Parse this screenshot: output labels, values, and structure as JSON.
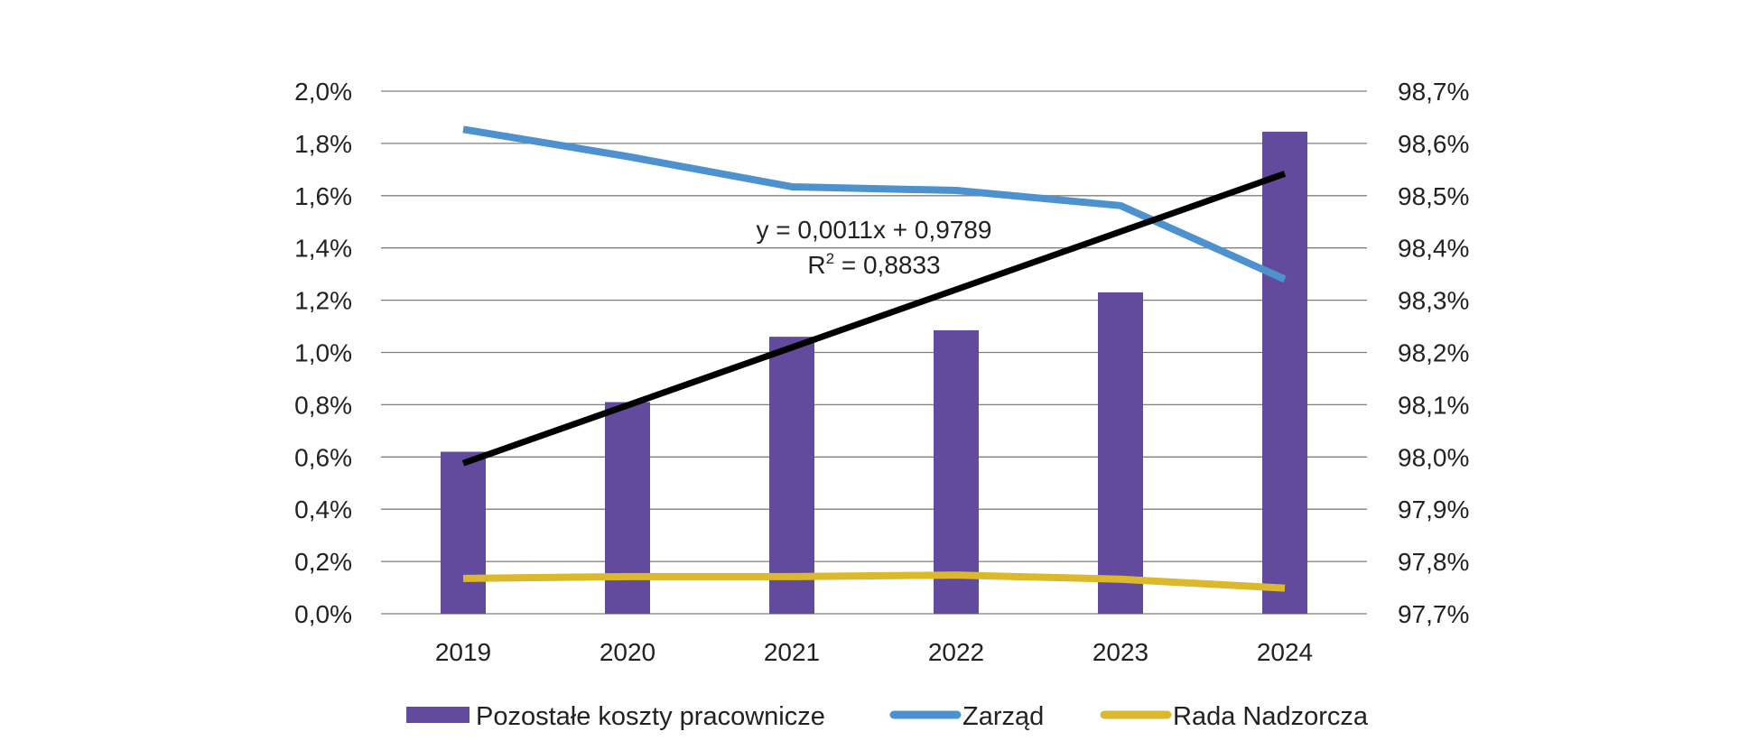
{
  "chart_data": {
    "type": "bar",
    "categories": [
      "2019",
      "2020",
      "2021",
      "2022",
      "2023",
      "2024"
    ],
    "series": [
      {
        "name": "Pozostałe koszty pracownicze",
        "kind": "bar",
        "axis": "left",
        "color": "#624b9d",
        "values": [
          0.62,
          0.81,
          1.06,
          1.085,
          1.23,
          1.845
        ]
      },
      {
        "name": "Zarząd",
        "kind": "line",
        "axis": "right",
        "color": "#4d92cf",
        "values": [
          98.627,
          98.575,
          98.517,
          98.51,
          98.481,
          98.34
        ]
      },
      {
        "name": "Rada Nadzorcza",
        "kind": "line",
        "axis": "left",
        "color": "#dcb82d",
        "values": [
          0.135,
          0.142,
          0.142,
          0.148,
          0.132,
          0.098
        ]
      }
    ],
    "trendline": {
      "axis": "right",
      "color": "#000000",
      "x_start": 2019,
      "x_end": 2024,
      "y_start": 97.988,
      "y_end": 98.542,
      "equation": "y = 0,0011x + 0,9789",
      "r2_prefix": "R",
      "r2_sup": "2",
      "r2_value": " = 0,8833"
    },
    "y_left": {
      "min": 0,
      "max": 2.0,
      "ticks": [
        "0,0%",
        "0,2%",
        "0,4%",
        "0,6%",
        "0,8%",
        "1,0%",
        "1,2%",
        "1,4%",
        "1,6%",
        "1,8%",
        "2,0%"
      ]
    },
    "y_right": {
      "min": 97.7,
      "max": 98.7,
      "ticks": [
        "97,7%",
        "97,8%",
        "97,9%",
        "98,0%",
        "98,1%",
        "98,2%",
        "98,3%",
        "98,4%",
        "98,5%",
        "98,6%",
        "98,7%"
      ]
    },
    "grid": true,
    "legend_position": "bottom"
  }
}
